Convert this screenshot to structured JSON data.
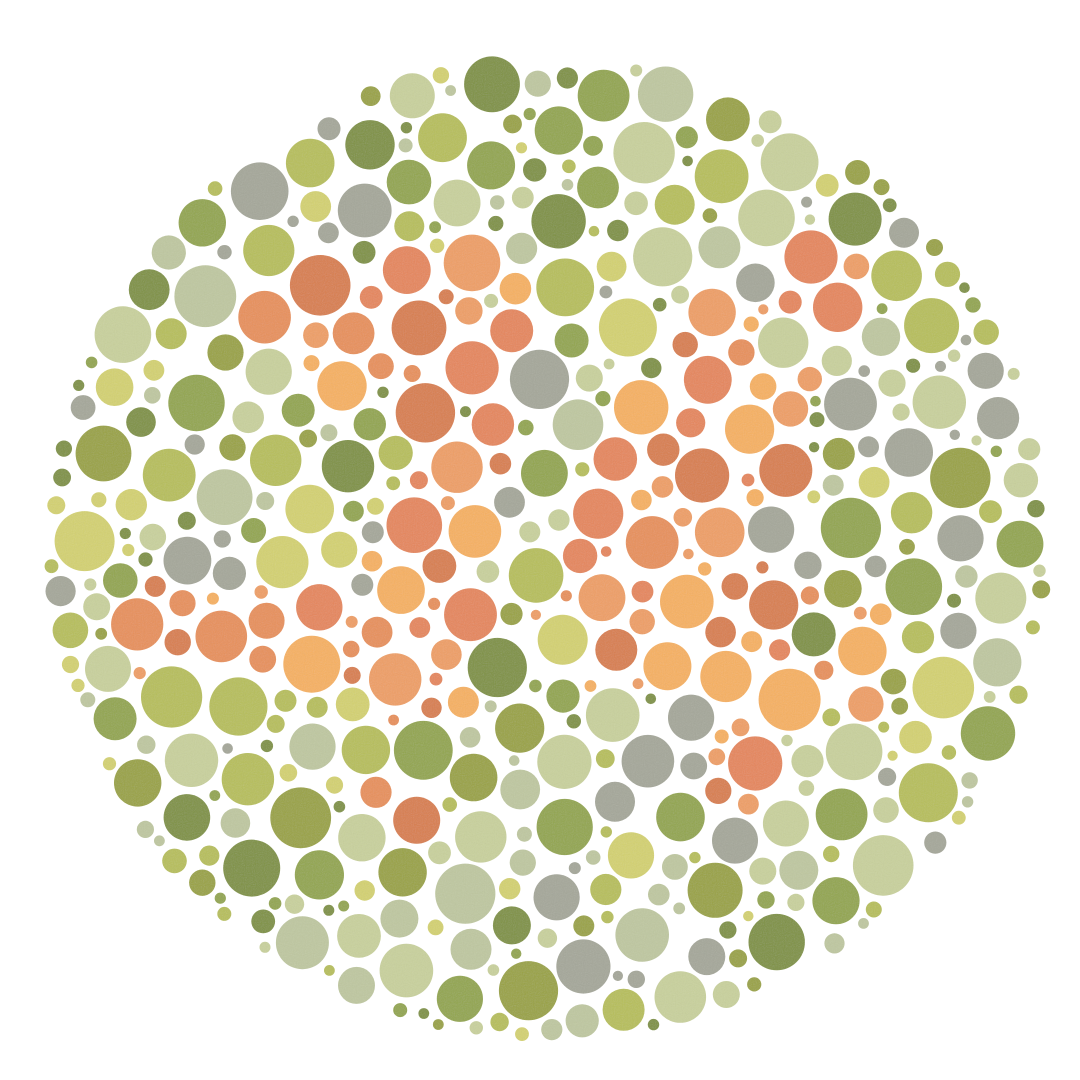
{
  "image": {
    "subject": "ishihara-color-plate",
    "hidden_figure": "74",
    "palette": {
      "background": "#ffffff",
      "foreground": [
        "#f7b15f",
        "#e89058",
        "#d97e4c",
        "#ef9f63",
        "#e6865a"
      ],
      "field": [
        "#7f9240",
        "#93a64b",
        "#b7bf58",
        "#d4d26f",
        "#c9d19c",
        "#a5a79a",
        "#bfc8a0",
        "#9aa33f"
      ]
    }
  }
}
